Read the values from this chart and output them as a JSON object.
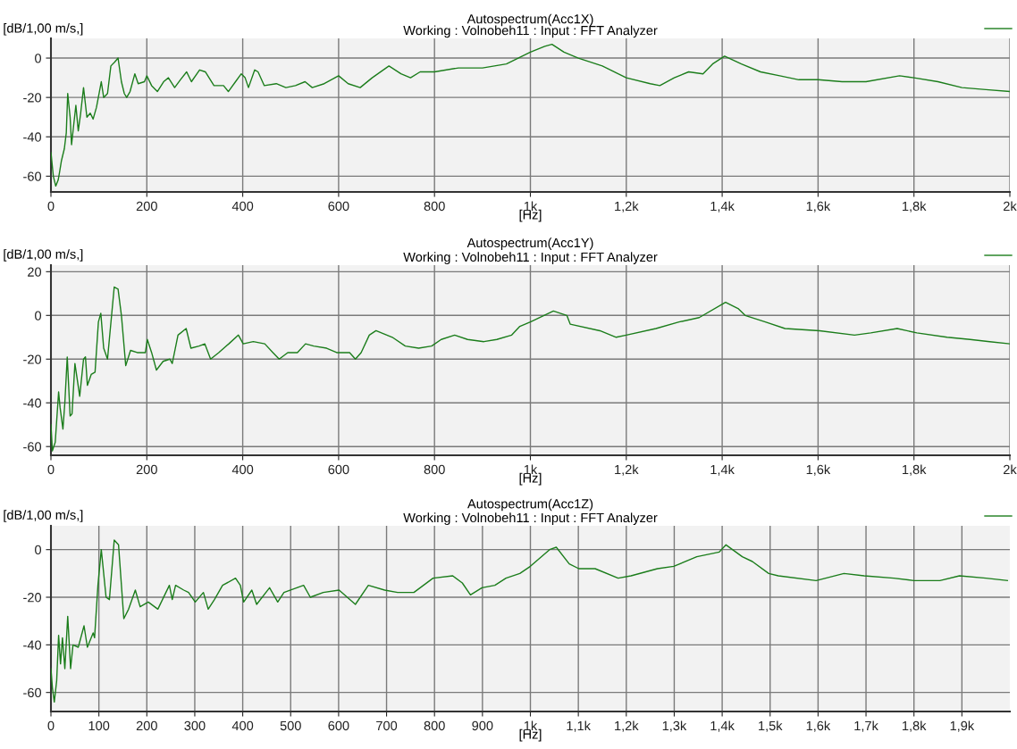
{
  "chart_data": [
    {
      "type": "line",
      "title": "Autospectrum(Acc1X)",
      "subtitle": "Working : Volnobeh11 : Input : FFT Analyzer",
      "xlabel": "[Hz]",
      "ylabel": "[dB/1,00 m/s,]",
      "xlim": [
        0,
        2000
      ],
      "ylim": [
        -68,
        10
      ],
      "xticks": [
        0,
        200,
        400,
        600,
        800,
        {
          "value": 1000,
          "label": "1k"
        },
        {
          "value": 1200,
          "label": "1,2k"
        },
        {
          "value": 1400,
          "label": "1,4k"
        },
        {
          "value": 1600,
          "label": "1,6k"
        },
        {
          "value": 1800,
          "label": "1,8k"
        },
        {
          "value": 2000,
          "label": "2k"
        }
      ],
      "yticks": [
        -60,
        -40,
        -20,
        0
      ],
      "grid": true,
      "marker": "none",
      "line_style": "solid",
      "series": [
        {
          "color": "#1b7d1b",
          "x": [
            0,
            5,
            10,
            15,
            18,
            22,
            28,
            32,
            35,
            40,
            43,
            47,
            52,
            57,
            62,
            68,
            75,
            82,
            88,
            95,
            105,
            110,
            118,
            125,
            133,
            140,
            147,
            153,
            158,
            165,
            175,
            182,
            195,
            200,
            210,
            222,
            235,
            245,
            258,
            270,
            283,
            293,
            310,
            322,
            340,
            360,
            370,
            385,
            397,
            405,
            412,
            425,
            432,
            445,
            470,
            490,
            510,
            530,
            545,
            570,
            600,
            620,
            645,
            670,
            705,
            730,
            750,
            770,
            800,
            850,
            900,
            950,
            1000,
            1030,
            1045,
            1070,
            1100,
            1150,
            1200,
            1250,
            1270,
            1300,
            1330,
            1360,
            1380,
            1405,
            1440,
            1480,
            1520,
            1560,
            1600,
            1650,
            1700,
            1770,
            1800,
            1850,
            1900,
            1950,
            2000
          ],
          "values": [
            -48,
            -60,
            -65,
            -62,
            -58,
            -52,
            -46,
            -38,
            -18,
            -30,
            -44,
            -35,
            -24,
            -37,
            -28,
            -15,
            -30,
            -28,
            -31,
            -25,
            -12,
            -20,
            -18,
            -4,
            -2,
            0,
            -12,
            -18,
            -20,
            -17,
            -8,
            -13,
            -12,
            -9,
            -14,
            -17,
            -12,
            -10,
            -15,
            -11,
            -7,
            -12,
            -6,
            -7,
            -14,
            -14,
            -17,
            -12,
            -8,
            -10,
            -15,
            -6,
            -7,
            -14,
            -13,
            -15,
            -14,
            -12,
            -15,
            -13,
            -9,
            -13,
            -15,
            -10,
            -4,
            -8,
            -10,
            -7,
            -7,
            -5,
            -5,
            -3,
            3,
            6,
            7,
            3,
            0,
            -4,
            -10,
            -13,
            -14,
            -10,
            -7,
            -8,
            -3,
            1,
            -3,
            -7,
            -9,
            -11,
            -11,
            -12,
            -12,
            -9,
            -10,
            -12,
            -15,
            -16,
            -17
          ]
        }
      ]
    },
    {
      "type": "line",
      "title": "Autospectrum(Acc1Y)",
      "subtitle": "Working : Volnobeh11 : Input : FFT Analyzer",
      "xlabel": "[Hz]",
      "ylabel": "[dB/1,00 m/s,]",
      "xlim": [
        0,
        2000
      ],
      "ylim": [
        -64,
        23
      ],
      "xticks": [
        0,
        200,
        400,
        600,
        800,
        {
          "value": 1000,
          "label": "1k"
        },
        {
          "value": 1200,
          "label": "1,2k"
        },
        {
          "value": 1400,
          "label": "1,4k"
        },
        {
          "value": 1600,
          "label": "1,6k"
        },
        {
          "value": 1800,
          "label": "1,8k"
        },
        {
          "value": 2000,
          "label": "2k"
        }
      ],
      "yticks": [
        -60,
        -40,
        -20,
        0,
        20
      ],
      "grid": true,
      "marker": "none",
      "line_style": "solid",
      "series": [
        {
          "color": "#1b7d1b",
          "x": [
            0,
            3,
            9,
            16,
            19,
            25,
            29,
            34,
            40,
            44,
            50,
            60,
            68,
            72,
            76,
            84,
            92,
            99,
            104,
            110,
            118,
            132,
            140,
            147,
            156,
            166,
            180,
            197,
            201,
            210,
            220,
            234,
            248,
            253,
            265,
            282,
            292,
            309,
            321,
            333,
            350,
            371,
            391,
            401,
            422,
            446,
            463,
            476,
            494,
            514,
            531,
            548,
            575,
            596,
            623,
            635,
            647,
            664,
            678,
            712,
            739,
            767,
            794,
            814,
            842,
            869,
            903,
            930,
            961,
            978,
            1000,
            1048,
            1076,
            1083,
            1145,
            1179,
            1200,
            1262,
            1310,
            1352,
            1407,
            1434,
            1448,
            1490,
            1531,
            1603,
            1676,
            1710,
            1765,
            1806,
            1869,
            1917,
            1958,
            2000
          ],
          "values": [
            -50,
            -62,
            -58,
            -35,
            -42,
            -52,
            -40,
            -19,
            -46,
            -45,
            -22,
            -37,
            -20,
            -19,
            -32,
            -27,
            -26,
            -3,
            1,
            -15,
            -20,
            13,
            12,
            0,
            -23,
            -16,
            -17,
            -17,
            -11,
            -17,
            -25,
            -21,
            -20,
            -22,
            -9,
            -6,
            -15,
            -14,
            -13,
            -20,
            -17,
            -13,
            -9,
            -13,
            -12,
            -13,
            -17,
            -20,
            -17,
            -17,
            -13,
            -14,
            -15,
            -17,
            -17,
            -20,
            -17,
            -9,
            -7,
            -10,
            -14,
            -15,
            -14,
            -11,
            -9,
            -11,
            -12,
            -11,
            -9,
            -5,
            -3,
            2,
            0,
            -4,
            -7,
            -10,
            -9,
            -6,
            -3,
            -1,
            6,
            3,
            0,
            -3,
            -6,
            -7,
            -9,
            -8,
            -6,
            -8,
            -10,
            -11,
            -12,
            -13
          ]
        }
      ]
    },
    {
      "type": "line",
      "title": "Autospectrum(Acc1Z)",
      "subtitle": "Working : Volnobeh11 : Input : FFT Analyzer",
      "xlabel": "[Hz]",
      "ylabel": "[dB/1,00 m/s,]",
      "xlim": [
        0,
        2000
      ],
      "ylim": [
        -68,
        10
      ],
      "xticks": [
        0,
        100,
        200,
        300,
        400,
        500,
        600,
        700,
        800,
        900,
        {
          "value": 1000,
          "label": "1k"
        },
        {
          "value": 1100,
          "label": "1,1k"
        },
        {
          "value": 1200,
          "label": "1,2k"
        },
        {
          "value": 1300,
          "label": "1,3k"
        },
        {
          "value": 1400,
          "label": "1,4k"
        },
        {
          "value": 1500,
          "label": "1,5k"
        },
        {
          "value": 1600,
          "label": "1,6k"
        },
        {
          "value": 1700,
          "label": "1,7k"
        },
        {
          "value": 1800,
          "label": "1,8k"
        },
        {
          "value": 1900,
          "label": "1,9k"
        }
      ],
      "yticks": [
        -60,
        -40,
        -20,
        0
      ],
      "grid": true,
      "marker": "none",
      "line_style": "solid",
      "series": [
        {
          "color": "#1b7d1b",
          "x": [
            0,
            3,
            7,
            12,
            16,
            20,
            24,
            29,
            35,
            41,
            46,
            57,
            69,
            76,
            88,
            91,
            98,
            105,
            115,
            122,
            132,
            141,
            152,
            162,
            176,
            186,
            203,
            223,
            247,
            253,
            260,
            277,
            287,
            301,
            318,
            328,
            341,
            358,
            385,
            395,
            402,
            419,
            429,
            456,
            473,
            486,
            527,
            541,
            568,
            601,
            618,
            635,
            662,
            696,
            723,
            757,
            797,
            838,
            858,
            875,
            899,
            926,
            949,
            978,
            1000,
            1040,
            1054,
            1081,
            1101,
            1135,
            1183,
            1210,
            1265,
            1299,
            1347,
            1394,
            1408,
            1442,
            1463,
            1497,
            1517,
            1596,
            1654,
            1696,
            1758,
            1800,
            1854,
            1895,
            1950,
            1995
          ],
          "values": [
            -50,
            -58,
            -64,
            -55,
            -36,
            -48,
            -37,
            -50,
            -28,
            -50,
            -40,
            -41,
            -32,
            -41,
            -35,
            -37,
            -15,
            0,
            -20,
            -21,
            4,
            2,
            -29,
            -25,
            -17,
            -24,
            -22,
            -25,
            -15,
            -21,
            -15,
            -17,
            -18,
            -22,
            -18,
            -25,
            -21,
            -15,
            -12,
            -15,
            -22,
            -17,
            -23,
            -16,
            -22,
            -18,
            -15,
            -20,
            -18,
            -17,
            -20,
            -23,
            -15,
            -17,
            -18,
            -18,
            -12,
            -11,
            -14,
            -19,
            -16,
            -15,
            -12,
            -10,
            -7,
            0,
            1,
            -6,
            -8,
            -8,
            -12,
            -11,
            -8,
            -7,
            -3,
            -1,
            2,
            -3,
            -5,
            -10,
            -11,
            -13,
            -10,
            -11,
            -12,
            -13,
            -13,
            -11,
            -12,
            -13
          ]
        }
      ]
    }
  ]
}
